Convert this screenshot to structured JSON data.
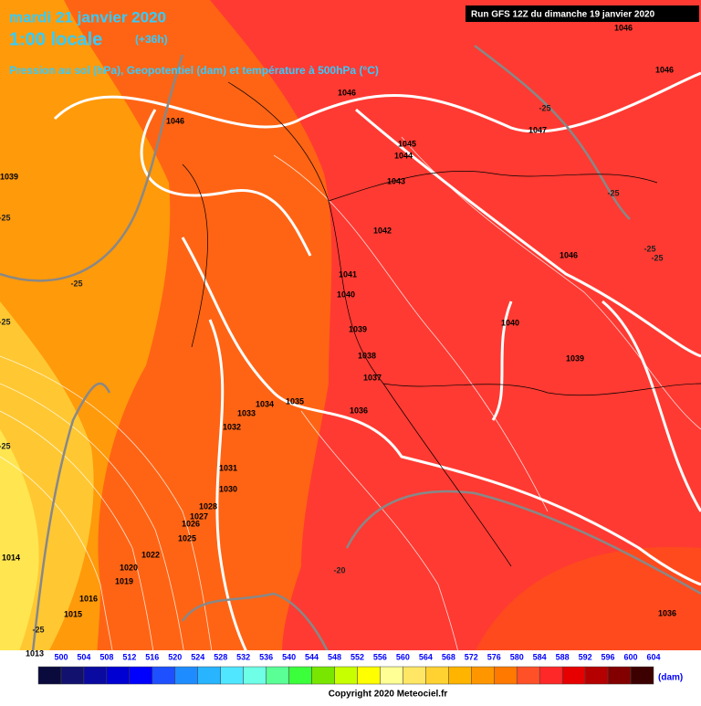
{
  "header": {
    "date": "mardi 21 janvier 2020",
    "time": "1:00 locale",
    "lead": "(+36h)",
    "subtitle": "Pression au sol (hPa), Geopotentiel (dam) et température à 500hPa (°C)",
    "run": "Run GFS 12Z du dimanche 19 janvier 2020"
  },
  "isobar_labels": [
    "1046",
    "1046",
    "1046",
    "1046",
    "1047",
    "1045",
    "1044",
    "1043",
    "1042",
    "1039",
    "1046",
    "1041",
    "1040",
    "1040",
    "1039",
    "1038",
    "1037",
    "1039",
    "1036",
    "1034",
    "1035",
    "1033",
    "1032",
    "1031",
    "1030",
    "1028",
    "1027",
    "1026",
    "1025",
    "1022",
    "1020",
    "1019",
    "1016",
    "1015",
    "1014",
    "1013",
    "1036"
  ],
  "temperature_labels": [
    "-25",
    "-25",
    "-25",
    "-25",
    "-25",
    "-25",
    "-25",
    "-20",
    "-25",
    "-25"
  ],
  "scale": {
    "values": [
      500,
      504,
      508,
      512,
      516,
      520,
      524,
      528,
      532,
      536,
      540,
      544,
      548,
      552,
      556,
      560,
      564,
      568,
      572,
      576,
      580,
      584,
      588,
      592,
      596,
      600,
      604
    ],
    "colors": [
      "#0a0a3c",
      "#12126e",
      "#0a0aa0",
      "#0000d2",
      "#0000ff",
      "#1e50ff",
      "#1e8cff",
      "#28b4ff",
      "#50e6ff",
      "#6effe6",
      "#5aff96",
      "#3cff3c",
      "#78e600",
      "#c8ff00",
      "#ffff00",
      "#ffff96",
      "#ffe664",
      "#ffd232",
      "#ffb400",
      "#ff9600",
      "#ff7800",
      "#ff5028",
      "#ff2828",
      "#e60000",
      "#b40000",
      "#820000",
      "#3c0000"
    ],
    "unit": "(dam)"
  },
  "copyright": "Copyright 2020 Meteociel.fr"
}
